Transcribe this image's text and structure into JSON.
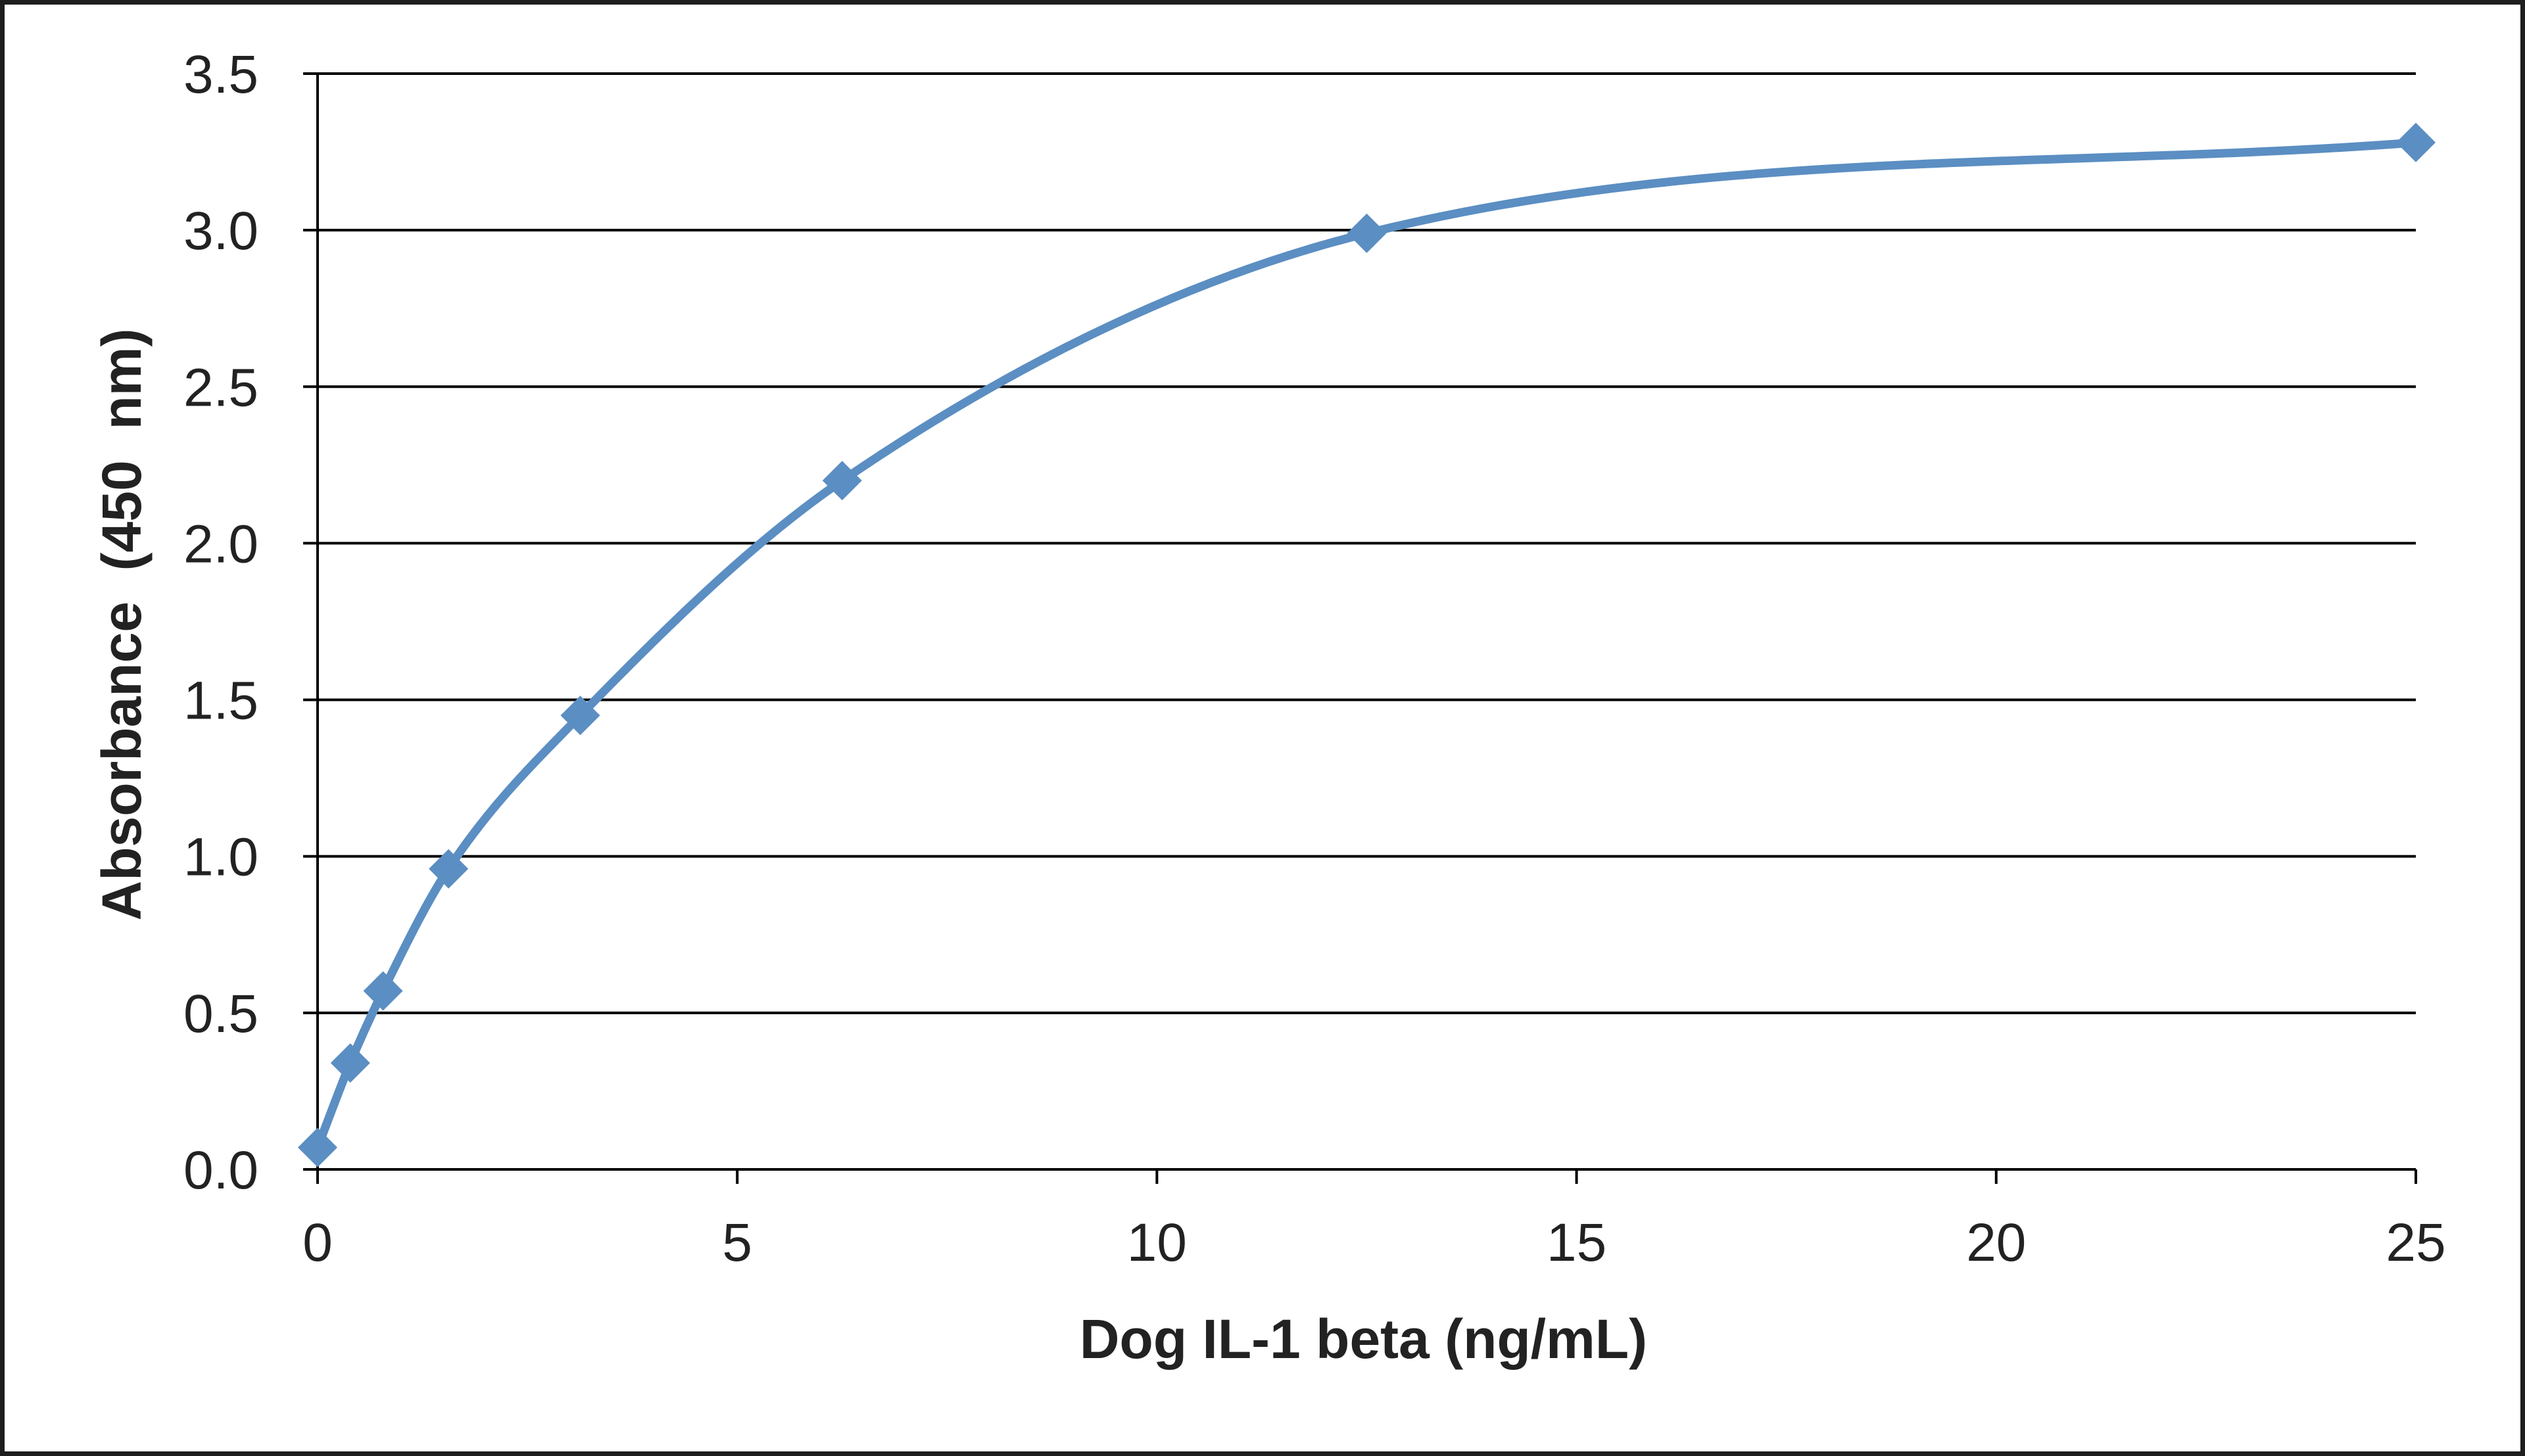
{
  "chart_data": {
    "type": "line",
    "title": "",
    "xlabel": "Dog IL-1 beta (ng/mL)",
    "ylabel": "Absorbance  (450  nm)",
    "xlim": [
      0,
      25
    ],
    "ylim": [
      0,
      3.5
    ],
    "x_ticks": [
      "0",
      "5",
      "10",
      "15",
      "20",
      "25"
    ],
    "y_ticks": [
      "0.0",
      "0.5",
      "1.0",
      "1.5",
      "2.0",
      "2.5",
      "3.0",
      "3.5"
    ],
    "grid": "horizontal",
    "legend": "none",
    "smooth": true,
    "marker": "diamond",
    "series": [
      {
        "x": [
          0,
          0.39,
          0.78,
          1.56,
          3.13,
          6.25,
          12.5,
          25
        ],
        "y": [
          0.07,
          0.34,
          0.57,
          0.96,
          1.45,
          2.2,
          2.99,
          3.28
        ]
      }
    ],
    "colors": {
      "line": "#5b8ec2",
      "marker": "#5b8ec2",
      "grid": "#000000",
      "axis": "#000000"
    }
  }
}
